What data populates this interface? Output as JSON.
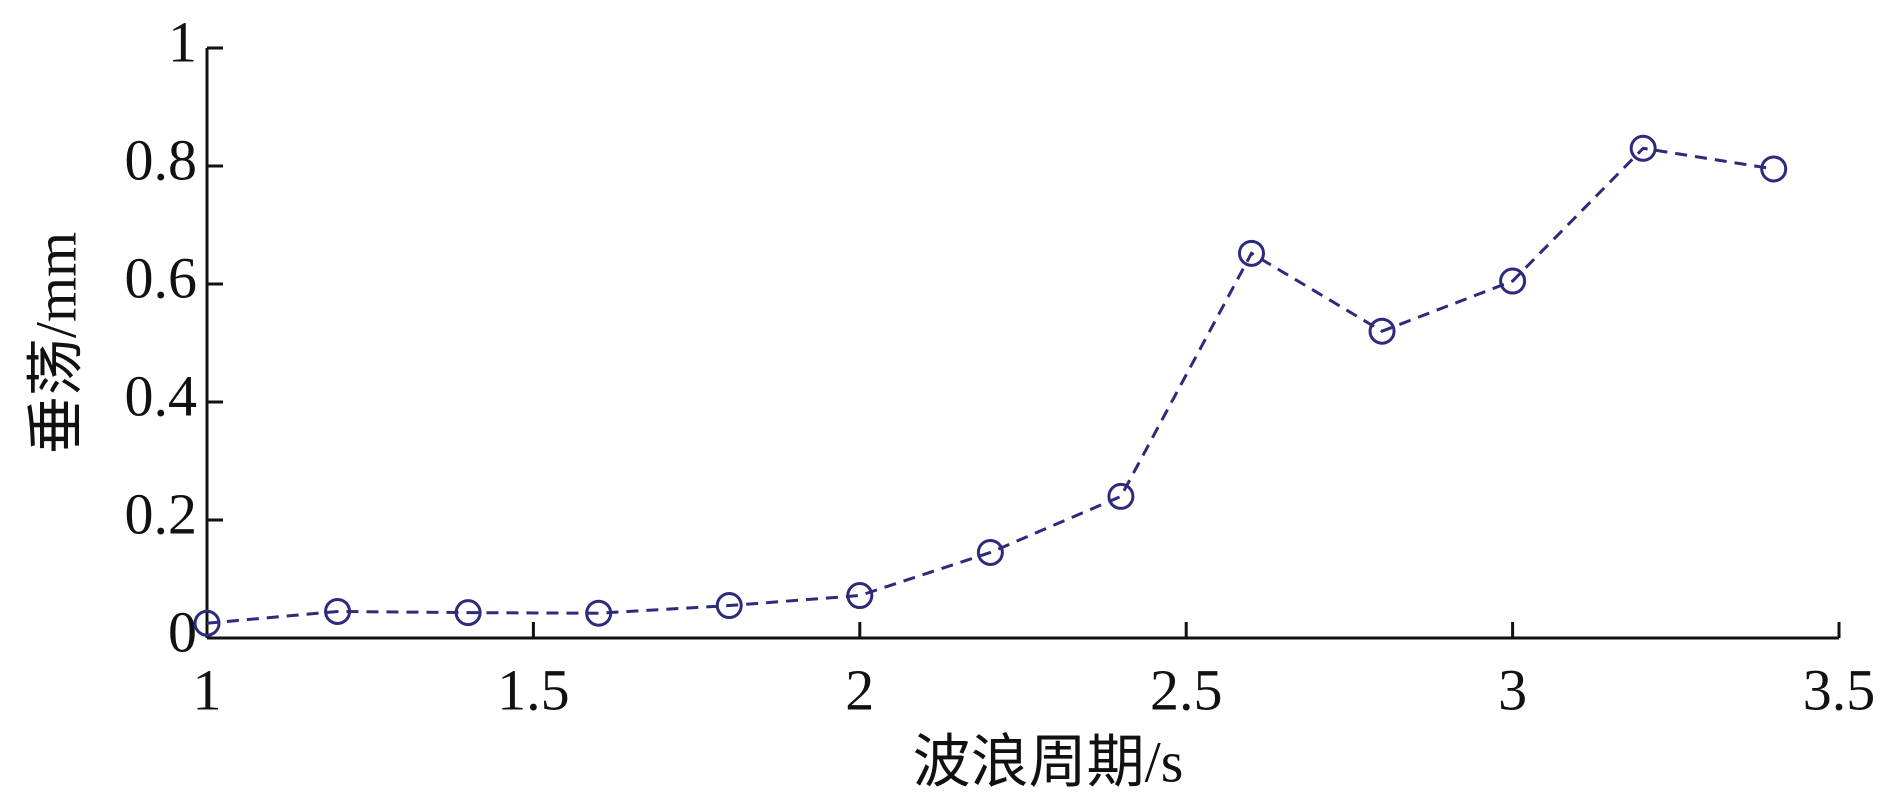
{
  "chart_data": {
    "type": "line",
    "x_label": "波浪周期/s",
    "y_label": "垂荡/mm",
    "x": [
      1,
      1.2,
      1.4,
      1.6,
      1.8,
      2,
      2.2,
      2.4,
      2.6,
      2.8,
      3,
      3.2,
      3.4
    ],
    "series": [
      {
        "name": "垂荡",
        "color": "#2e2a7c",
        "values": [
          0.025,
          0.045,
          0.043,
          0.042,
          0.055,
          0.072,
          0.145,
          0.24,
          0.652,
          0.52,
          0.605,
          0.83,
          0.795
        ]
      }
    ],
    "xlim": [
      1,
      3.5
    ],
    "xticks": [
      1,
      1.5,
      2,
      2.5,
      3,
      3.5
    ],
    "ylim": [
      0,
      1
    ],
    "yticks": [
      0,
      0.2,
      0.4,
      0.6,
      0.8,
      1
    ]
  }
}
